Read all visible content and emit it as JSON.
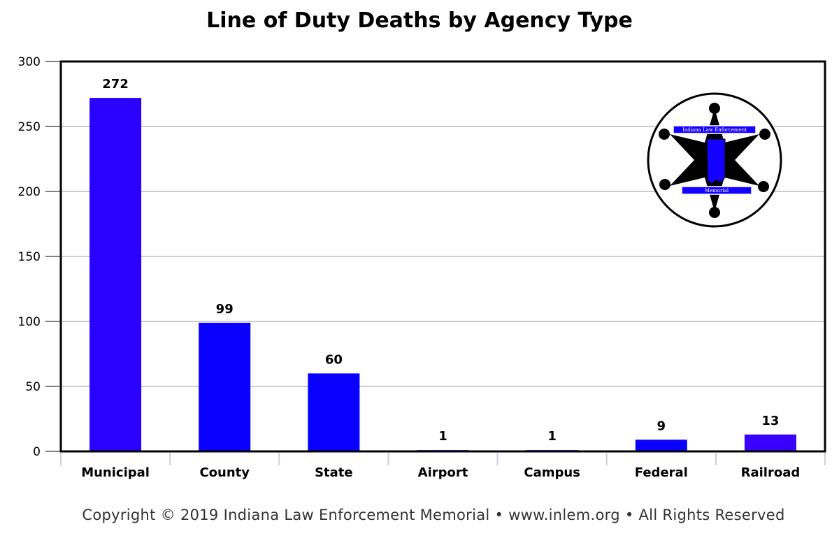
{
  "chart_data": {
    "type": "bar",
    "title": "Line of Duty Deaths by Agency Type",
    "categories": [
      "Municipal",
      "County",
      "State",
      "Airport",
      "Campus",
      "Federal",
      "Railroad"
    ],
    "values": [
      272,
      99,
      60,
      1,
      1,
      9,
      13
    ],
    "data_labels": [
      "272",
      "99",
      "60",
      "1",
      "1",
      "9",
      "13"
    ],
    "bar_colors": [
      "#2a00ff",
      "#0a00ff",
      "#0a00ff",
      "#0a00ff",
      "#0a00ff",
      "#0a00ff",
      "#3a00ff"
    ],
    "ylim": [
      0,
      300
    ],
    "yticks": [
      0,
      50,
      100,
      150,
      200,
      250,
      300
    ],
    "xlabel": "",
    "ylabel": "",
    "grid": true,
    "legend": "none"
  },
  "logo": {
    "top_text": "Indiana Law Enforcement",
    "bottom_text": "Memorial",
    "accent_color": "#1400ff"
  },
  "footer": {
    "copyright": "Copyright © 2019 Indiana Law Enforcement Memorial",
    "url": "www.inlem.org",
    "rights": "All Rights Reserved",
    "separator": "•"
  }
}
